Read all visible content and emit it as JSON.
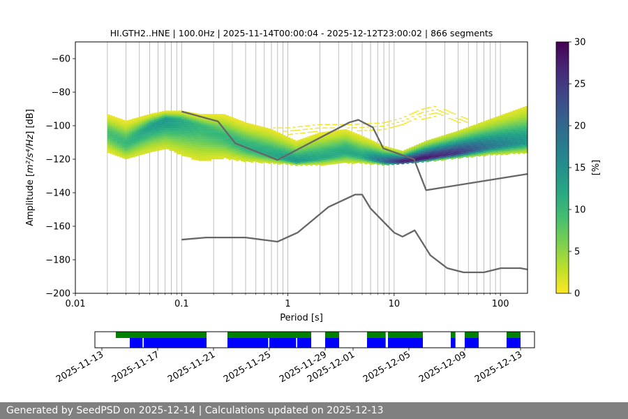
{
  "chart_data": [
    {
      "type": "heatmap",
      "title": "HI.GTH2..HNE | 100.0Hz | 2025-11-14T00:00:04 - 2025-12-12T23:00:02 | 866 segments",
      "xlabel": "Period [s]",
      "ylabel_prefix": "Amplitude [",
      "ylabel_math": "m²/s⁴/Hz",
      "ylabel_suffix": "] [dB]",
      "x_scale": "log",
      "xlim": [
        0.01,
        180
      ],
      "ylim": [
        -200,
        -50
      ],
      "x_ticks": [
        {
          "value": 0.01,
          "label": "0.01"
        },
        {
          "value": 0.1,
          "label": "0.1"
        },
        {
          "value": 1,
          "label": "1"
        },
        {
          "value": 10,
          "label": "10"
        },
        {
          "value": 100,
          "label": "100"
        }
      ],
      "y_ticks": [
        {
          "value": -60,
          "label": "−60"
        },
        {
          "value": -80,
          "label": "−80"
        },
        {
          "value": -100,
          "label": "−100"
        },
        {
          "value": -120,
          "label": "−120"
        },
        {
          "value": -140,
          "label": "−140"
        },
        {
          "value": -160,
          "label": "−160"
        },
        {
          "value": -180,
          "label": "−180"
        },
        {
          "value": -200,
          "label": "−200"
        }
      ],
      "grid": "vertical",
      "colormap": "viridis_r",
      "colorbar": {
        "label": "[%]",
        "range": [
          0,
          30
        ],
        "ticks": [
          {
            "value": 0,
            "label": "0"
          },
          {
            "value": 5,
            "label": "5"
          },
          {
            "value": 10,
            "label": "10"
          },
          {
            "value": 15,
            "label": "15"
          },
          {
            "value": 20,
            "label": "20"
          },
          {
            "value": 25,
            "label": "25"
          },
          {
            "value": 30,
            "label": "30"
          }
        ]
      },
      "density_band": [
        {
          "period": 0.02,
          "mode": -104,
          "low": -115,
          "high": -93,
          "peak": 9
        },
        {
          "period": 0.03,
          "mode": -110,
          "low": -120,
          "high": -97,
          "peak": 10
        },
        {
          "period": 0.05,
          "mode": -100,
          "low": -115,
          "high": -93,
          "peak": 13
        },
        {
          "period": 0.07,
          "mode": -96,
          "low": -113,
          "high": -91,
          "peak": 14
        },
        {
          "period": 0.1,
          "mode": -97,
          "low": -117,
          "high": -91,
          "peak": 12
        },
        {
          "period": 0.15,
          "mode": -100,
          "low": -121,
          "high": -93,
          "peak": 10
        },
        {
          "period": 0.25,
          "mode": -106,
          "low": -119,
          "high": -93,
          "peak": 10
        },
        {
          "period": 0.4,
          "mode": -112,
          "low": -121,
          "high": -98,
          "peak": 11
        },
        {
          "period": 0.7,
          "mode": -117,
          "low": -122,
          "high": -102,
          "peak": 12
        },
        {
          "period": 1.2,
          "mode": -121,
          "low": -123,
          "high": -109,
          "peak": 14
        },
        {
          "period": 2.0,
          "mode": -119,
          "low": -123,
          "high": -104,
          "peak": 12
        },
        {
          "period": 3.5,
          "mode": -115,
          "low": -122,
          "high": -102,
          "peak": 12
        },
        {
          "period": 5.0,
          "mode": -118,
          "low": -122,
          "high": -106,
          "peak": 12
        },
        {
          "period": 8.0,
          "mode": -121,
          "low": -123,
          "high": -112,
          "peak": 20
        },
        {
          "period": 12,
          "mode": -121,
          "low": -122,
          "high": -115,
          "peak": 28
        },
        {
          "period": 20,
          "mode": -119,
          "low": -121,
          "high": -109,
          "peak": 28
        },
        {
          "period": 40,
          "mode": -116,
          "low": -119,
          "high": -103,
          "peak": 25
        },
        {
          "period": 80,
          "mode": -112,
          "low": -117,
          "high": -96,
          "peak": 18
        },
        {
          "period": 180,
          "mode": -109,
          "low": -116,
          "high": -88,
          "peak": 14
        }
      ],
      "sparse_band": [
        {
          "period": 0.4,
          "low": -104,
          "high": -100
        },
        {
          "period": 0.6,
          "low": -106,
          "high": -101
        },
        {
          "period": 1.0,
          "low": -106,
          "high": -101
        },
        {
          "period": 2.0,
          "low": -104,
          "high": -99
        },
        {
          "period": 4.0,
          "low": -103,
          "high": -99
        },
        {
          "period": 8.0,
          "low": -102,
          "high": -98
        },
        {
          "period": 12,
          "low": -100,
          "high": -95
        },
        {
          "period": 18,
          "low": -96,
          "high": -90
        },
        {
          "period": 25,
          "low": -95,
          "high": -88
        },
        {
          "period": 35,
          "low": -97,
          "high": -92
        },
        {
          "period": 50,
          "low": -101,
          "high": -96
        }
      ],
      "series": [
        {
          "color": "#666666",
          "x": [
            0.1,
            0.22,
            0.32,
            0.8,
            3.8,
            4.6,
            6.3,
            7.9,
            15.4,
            20,
            180
          ],
          "y": [
            -91.5,
            -97.4,
            -110.5,
            -120.4,
            -98,
            -96.5,
            -101,
            -113.5,
            -120,
            -138.5,
            -128.8
          ]
        },
        {
          "color": "#666666",
          "x": [
            0.1,
            0.17,
            0.4,
            0.8,
            1.24,
            2.4,
            4.3,
            5.0,
            6.0,
            10,
            12,
            15.6,
            21.9,
            31.6,
            45,
            70,
            101,
            154,
            180
          ],
          "y": [
            -168,
            -166.7,
            -166.7,
            -169.2,
            -163.7,
            -148.6,
            -141.1,
            -141.1,
            -149.4,
            -163.8,
            -166.2,
            -162.4,
            -177.3,
            -185,
            -187.5,
            -187.5,
            -185,
            -185,
            -185.8
          ]
        }
      ]
    },
    {
      "type": "timeline",
      "x_ticks": [
        {
          "date": "2025-11-13",
          "label": "2025-11-13"
        },
        {
          "date": "2025-11-17",
          "label": "2025-11-17"
        },
        {
          "date": "2025-11-21",
          "label": "2025-11-21"
        },
        {
          "date": "2025-11-25",
          "label": "2025-11-25"
        },
        {
          "date": "2025-11-29",
          "label": "2025-11-29"
        },
        {
          "date": "2025-12-01",
          "label": "2025-12-01"
        },
        {
          "date": "2025-12-05",
          "label": "2025-12-05"
        },
        {
          "date": "2025-12-09",
          "label": "2025-12-09"
        },
        {
          "date": "2025-12-13",
          "label": "2025-12-13"
        }
      ],
      "xlim": [
        "2025-11-12T12:00",
        "2025-12-14T00:00"
      ],
      "colors": {
        "available": "#008000",
        "used": "#0000ff"
      },
      "available": [
        [
          "2025-11-14T00:00",
          "2025-11-20T12:00"
        ],
        [
          "2025-11-22T00:00",
          "2025-11-28T00:00"
        ],
        [
          "2025-11-29T00:00",
          "2025-11-30T00:00"
        ],
        [
          "2025-12-02T00:00",
          "2025-12-03T08:00"
        ],
        [
          "2025-12-03T12:00",
          "2025-12-06T00:00"
        ],
        [
          "2025-12-08T00:00",
          "2025-12-08T08:00"
        ],
        [
          "2025-12-09T00:00",
          "2025-12-10T00:00"
        ],
        [
          "2025-12-12T00:00",
          "2025-12-13T00:00"
        ]
      ],
      "used": [
        [
          "2025-11-15T00:00",
          "2025-11-15T22:00"
        ],
        [
          "2025-11-16T00:00",
          "2025-11-20T12:00"
        ],
        [
          "2025-11-22T00:00",
          "2025-11-24T22:00"
        ],
        [
          "2025-11-25T00:00",
          "2025-11-26T22:00"
        ],
        [
          "2025-11-27T00:00",
          "2025-11-28T00:00"
        ],
        [
          "2025-11-29T00:00",
          "2025-11-30T00:00"
        ],
        [
          "2025-12-02T00:00",
          "2025-12-03T08:00"
        ],
        [
          "2025-12-03T12:00",
          "2025-12-06T00:00"
        ],
        [
          "2025-12-08T00:00",
          "2025-12-08T08:00"
        ],
        [
          "2025-12-09T00:00",
          "2025-12-10T00:00"
        ],
        [
          "2025-12-12T00:00",
          "2025-12-13T00:00"
        ]
      ]
    }
  ],
  "footer": {
    "text": "Generated by SeedPSD on 2025-12-14 | Calculations updated on 2025-12-13"
  }
}
